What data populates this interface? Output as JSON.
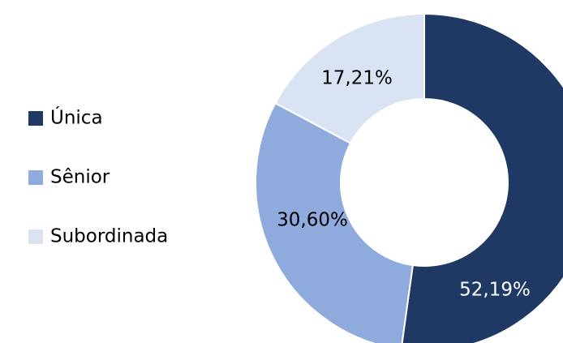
{
  "chart_data": {
    "type": "pie",
    "categories": [
      "Única",
      "Sênior",
      "Subordinada"
    ],
    "values": [
      52.19,
      30.6,
      17.21
    ],
    "value_labels": [
      "52,19%",
      "30,60%",
      "17,21%"
    ],
    "colors": [
      "#203864",
      "#8faadc",
      "#dae3f3"
    ],
    "legend": "left"
  }
}
